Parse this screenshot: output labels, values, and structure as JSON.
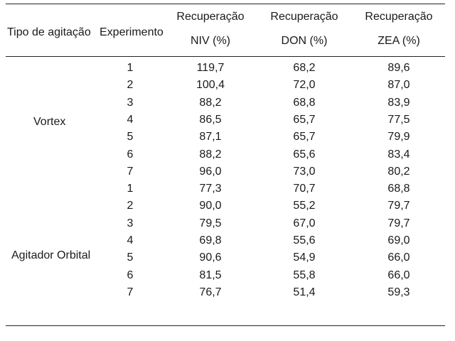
{
  "table": {
    "header": {
      "tipo": "Tipo de agitação",
      "experimento": "Experimento",
      "niv_line1": "Recuperação",
      "niv_line2": "NIV (%)",
      "don_line1": "Recuperação",
      "don_line2": "DON (%)",
      "zea_line1": "Recuperação",
      "zea_line2": "ZEA (%)"
    },
    "groups": [
      {
        "label": "Vortex",
        "rows": [
          {
            "exp": "1",
            "niv": "119,7",
            "don": "68,2",
            "zea": "89,6"
          },
          {
            "exp": "2",
            "niv": "100,4",
            "don": "72,0",
            "zea": "87,0"
          },
          {
            "exp": "3",
            "niv": "88,2",
            "don": "68,8",
            "zea": "83,9"
          },
          {
            "exp": "4",
            "niv": "86,5",
            "don": "65,7",
            "zea": "77,5"
          },
          {
            "exp": "5",
            "niv": "87,1",
            "don": "65,7",
            "zea": "79,9"
          },
          {
            "exp": "6",
            "niv": "88,2",
            "don": "65,6",
            "zea": "83,4"
          },
          {
            "exp": "7",
            "niv": "96,0",
            "don": "73,0",
            "zea": "80,2"
          }
        ]
      },
      {
        "label": "Agitador Orbital",
        "rows": [
          {
            "exp": "1",
            "niv": "77,3",
            "don": "70,7",
            "zea": "68,8"
          },
          {
            "exp": "2",
            "niv": "90,0",
            "don": "55,2",
            "zea": "79,7"
          },
          {
            "exp": "3",
            "niv": "79,5",
            "don": "67,0",
            "zea": "79,7"
          },
          {
            "exp": "4",
            "niv": "69,8",
            "don": "55,6",
            "zea": "69,0"
          },
          {
            "exp": "5",
            "niv": "90,6",
            "don": "54,9",
            "zea": "66,0"
          },
          {
            "exp": "6",
            "niv": "81,5",
            "don": "55,8",
            "zea": "66,0"
          },
          {
            "exp": "7",
            "niv": "76,7",
            "don": "51,4",
            "zea": "59,3"
          }
        ]
      }
    ]
  }
}
